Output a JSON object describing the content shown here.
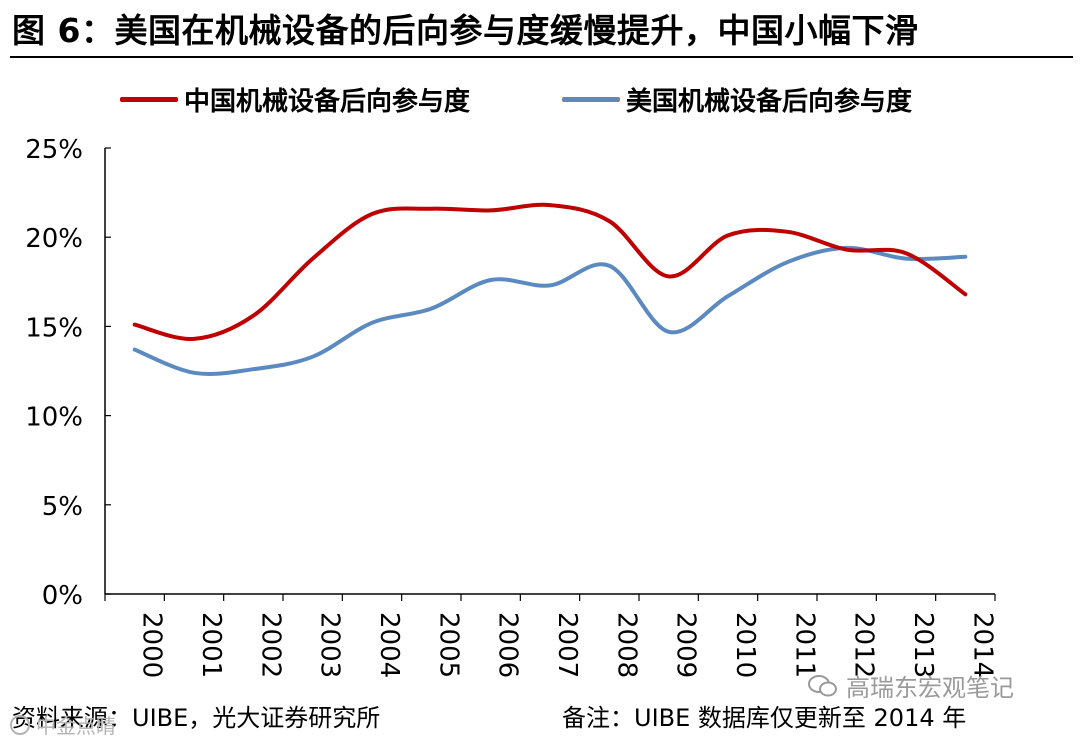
{
  "title": "图 6：美国在机械设备的后向参与度缓慢提升，中国小幅下滑",
  "colors": {
    "china": "#c00000",
    "usa": "#5b8ac0",
    "axis": "#000000"
  },
  "chart_data": {
    "type": "line",
    "title": "图 6：美国在机械设备的后向参与度缓慢提升，中国小幅下滑",
    "xlabel": "",
    "ylabel": "",
    "x": [
      "2000",
      "2001",
      "2002",
      "2003",
      "2004",
      "2005",
      "2006",
      "2007",
      "2008",
      "2009",
      "2010",
      "2011",
      "2012",
      "2013",
      "2014"
    ],
    "y_ticks": [
      "0%",
      "5%",
      "10%",
      "15%",
      "20%",
      "25%"
    ],
    "ylim": [
      0,
      25
    ],
    "grid": false,
    "legend_position": "top",
    "series": [
      {
        "name": "中国机械设备后向参与度",
        "color": "#c00000",
        "values": [
          15.1,
          14.3,
          15.6,
          18.8,
          21.3,
          21.6,
          21.5,
          21.8,
          20.9,
          17.8,
          20.1,
          20.3,
          19.3,
          19.1,
          16.8
        ]
      },
      {
        "name": "美国机械设备后向参与度",
        "color": "#5b8ac0",
        "values": [
          13.7,
          12.4,
          12.6,
          13.3,
          15.2,
          16.0,
          17.6,
          17.3,
          18.4,
          14.7,
          16.7,
          18.6,
          19.4,
          18.8,
          18.9
        ]
      }
    ]
  },
  "footer": {
    "source": "资料来源：UIBE，光大证券研究所",
    "note": "备注：UIBE 数据库仅更新至 2014 年"
  },
  "watermark": {
    "account": "高瑞东宏观笔记",
    "corner": "中金点睛"
  }
}
